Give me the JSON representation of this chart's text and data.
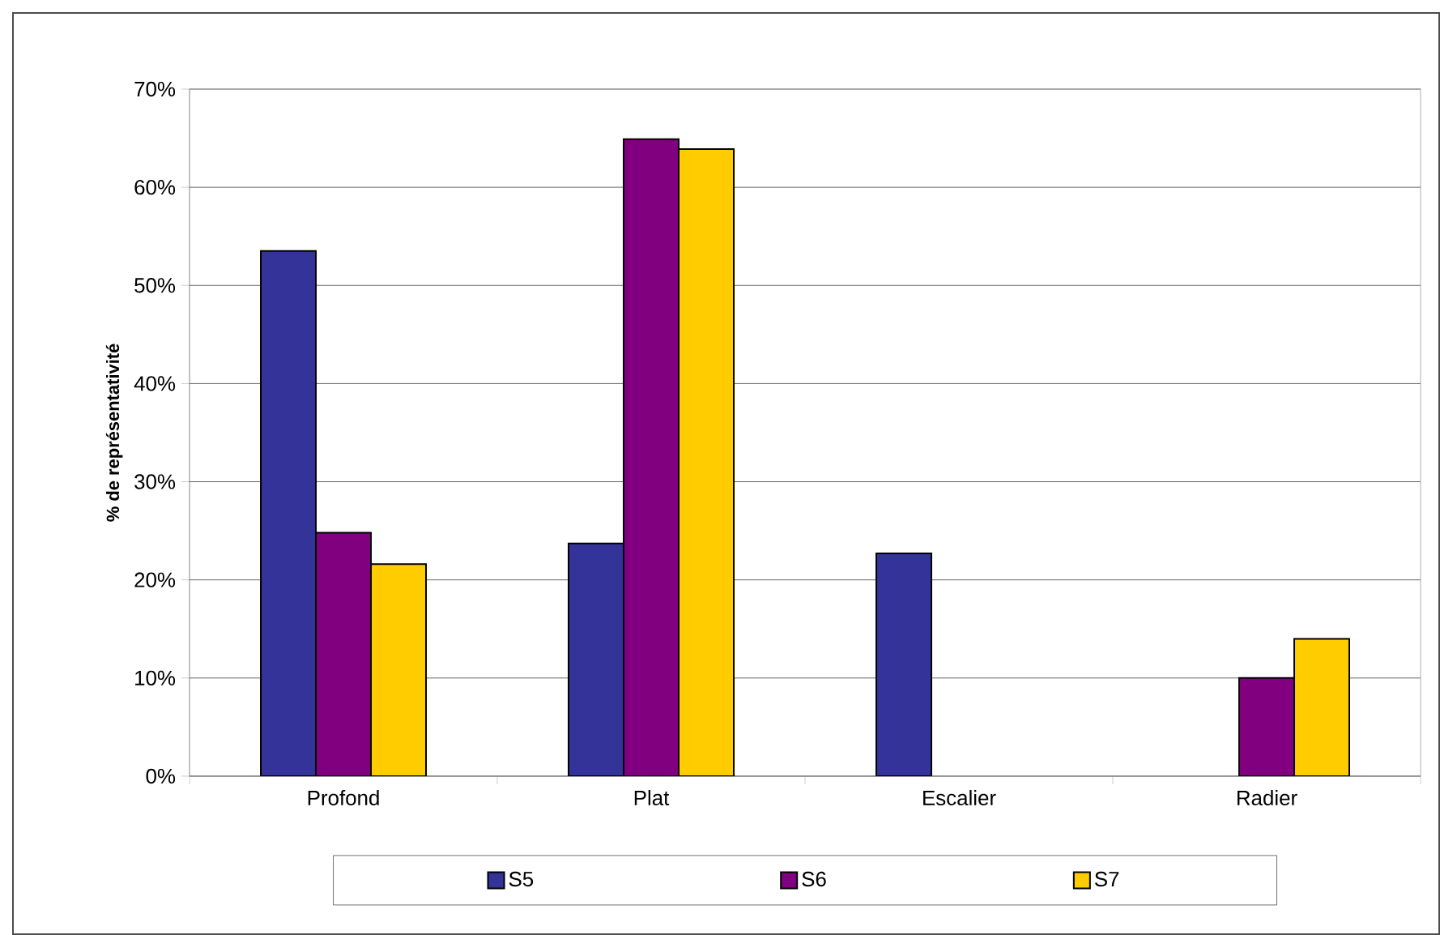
{
  "chart_data": {
    "type": "bar",
    "ylabel": "% de représentativité",
    "categories": [
      "Profond",
      "Plat",
      "Escalier",
      "Radier"
    ],
    "series": [
      {
        "name": "S5",
        "color": "#333399",
        "values": [
          53.5,
          23.7,
          22.7,
          null
        ]
      },
      {
        "name": "S6",
        "color": "#800080",
        "values": [
          24.8,
          64.9,
          null,
          10.0
        ]
      },
      {
        "name": "S7",
        "color": "#ffcc00",
        "values": [
          21.6,
          63.9,
          null,
          14.0
        ]
      }
    ],
    "ylim": [
      0,
      70
    ],
    "yticks": [
      {
        "value": 0,
        "label": "0%"
      },
      {
        "value": 10,
        "label": "10%"
      },
      {
        "value": 20,
        "label": "20%"
      },
      {
        "value": 30,
        "label": "30%"
      },
      {
        "value": 40,
        "label": "40%"
      },
      {
        "value": 50,
        "label": "50%"
      },
      {
        "value": 60,
        "label": "60%"
      },
      {
        "value": 70,
        "label": "70%"
      }
    ],
    "grid": "y",
    "legend": "bottom"
  }
}
